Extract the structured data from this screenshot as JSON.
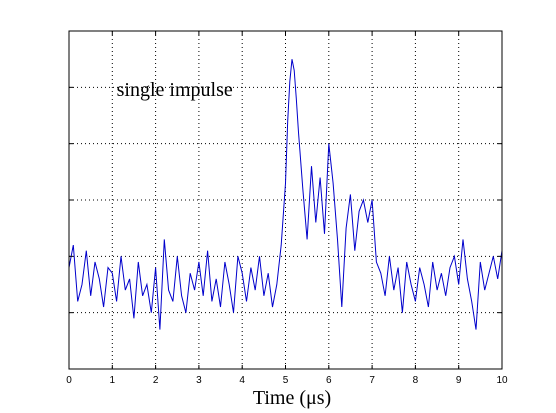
{
  "chart_data": {
    "type": "line",
    "title": "",
    "xlabel": "Time (μs)",
    "ylabel": "",
    "xlim": [
      0,
      10
    ],
    "ylim": [
      -1.0,
      5.0
    ],
    "x_ticks": [
      "0",
      "1",
      "2",
      "3",
      "4",
      "5",
      "6",
      "7",
      "8",
      "9",
      "10"
    ],
    "y_tick_values": [
      0,
      1,
      2,
      3,
      4
    ],
    "y_tick_labels_shown": false,
    "grid": true,
    "grid_style": "dotted",
    "line_color": "#0000CC",
    "annotation": {
      "text": "single impulse",
      "x": 1.1,
      "y": 3.85
    },
    "series": [
      {
        "x": [
          0.0,
          0.1,
          0.2,
          0.3,
          0.4,
          0.5,
          0.6,
          0.7,
          0.8,
          0.9,
          1.0,
          1.1,
          1.2,
          1.3,
          1.4,
          1.5,
          1.6,
          1.7,
          1.8,
          1.9,
          2.0,
          2.1,
          2.2,
          2.3,
          2.4,
          2.5,
          2.6,
          2.7,
          2.8,
          2.9,
          3.0,
          3.1,
          3.2,
          3.3,
          3.4,
          3.5,
          3.6,
          3.7,
          3.8,
          3.9,
          4.0,
          4.1,
          4.2,
          4.3,
          4.4,
          4.5,
          4.6,
          4.7,
          4.8,
          4.9,
          5.0,
          5.05,
          5.1,
          5.15,
          5.2,
          5.25,
          5.3,
          5.4,
          5.5,
          5.6,
          5.7,
          5.8,
          5.9,
          6.0,
          6.1,
          6.2,
          6.3,
          6.4,
          6.5,
          6.6,
          6.7,
          6.8,
          6.9,
          7.0,
          7.1,
          7.2,
          7.3,
          7.4,
          7.5,
          7.6,
          7.7,
          7.8,
          7.9,
          8.0,
          8.1,
          8.2,
          8.3,
          8.4,
          8.5,
          8.6,
          8.7,
          8.8,
          8.9,
          9.0,
          9.1,
          9.2,
          9.3,
          9.4,
          9.5,
          9.6,
          9.7,
          9.8,
          9.9,
          10.0
        ],
        "y": [
          0.8,
          1.2,
          0.2,
          0.5,
          1.1,
          0.3,
          0.9,
          0.6,
          0.1,
          0.8,
          0.7,
          0.2,
          1.0,
          0.4,
          0.6,
          -0.1,
          0.9,
          0.3,
          0.5,
          0.0,
          0.8,
          -0.3,
          1.3,
          0.4,
          0.2,
          1.0,
          0.3,
          0.0,
          0.7,
          0.4,
          0.9,
          0.3,
          1.1,
          0.2,
          0.6,
          0.1,
          0.9,
          0.5,
          0.0,
          1.0,
          0.7,
          0.2,
          0.8,
          0.4,
          1.0,
          0.3,
          0.7,
          0.1,
          0.5,
          1.2,
          2.3,
          3.4,
          4.1,
          4.5,
          4.3,
          3.8,
          3.2,
          2.2,
          1.3,
          2.6,
          1.6,
          2.4,
          1.4,
          3.0,
          2.3,
          1.3,
          0.1,
          1.5,
          2.1,
          1.1,
          1.8,
          2.0,
          1.6,
          2.0,
          0.9,
          0.7,
          0.3,
          1.0,
          0.4,
          0.8,
          0.0,
          0.9,
          0.5,
          0.2,
          0.8,
          0.5,
          0.1,
          0.9,
          0.4,
          0.7,
          0.3,
          0.8,
          1.0,
          0.5,
          1.3,
          0.6,
          0.2,
          -0.3,
          0.9,
          0.4,
          0.7,
          1.0,
          0.6,
          1.1
        ]
      }
    ]
  }
}
